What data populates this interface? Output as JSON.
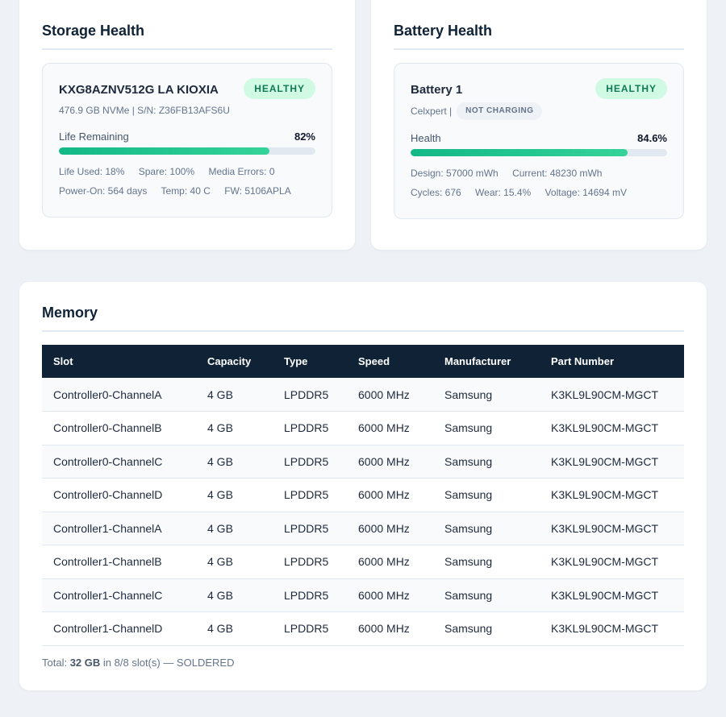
{
  "storage": {
    "title": "Storage Health",
    "device_name": "KXG8AZNV512G LA KIOXIA",
    "status": "HEALTHY",
    "subtitle": "476.9 GB NVMe | S/N: Z36FB13AFS6U",
    "life_label": "Life Remaining",
    "life_value": "82%",
    "life_fraction": 0.82,
    "life_used": "Life Used: 18%",
    "spare": "Spare: 100%",
    "media_errors": "Media Errors: 0",
    "power_on": "Power-On: 564 days",
    "temp": "Temp: 40 C",
    "firmware": "FW: 5106APLA"
  },
  "battery": {
    "title": "Battery Health",
    "name": "Battery 1",
    "status": "HEALTHY",
    "vendor": "Celxpert |",
    "charge_state": "NOT CHARGING",
    "health_label": "Health",
    "health_value": "84.6%",
    "health_fraction": 0.846,
    "design": "Design: 57000 mWh",
    "current": "Current: 48230 mWh",
    "cycles": "Cycles: 676",
    "wear": "Wear: 15.4%",
    "voltage": "Voltage: 14694 mV"
  },
  "memory": {
    "title": "Memory",
    "columns": [
      "Slot",
      "Capacity",
      "Type",
      "Speed",
      "Manufacturer",
      "Part Number"
    ],
    "rows": [
      [
        "Controller0-ChannelA",
        "4 GB",
        "LPDDR5",
        "6000 MHz",
        "Samsung",
        "K3KL9L90CM-MGCT"
      ],
      [
        "Controller0-ChannelB",
        "4 GB",
        "LPDDR5",
        "6000 MHz",
        "Samsung",
        "K3KL9L90CM-MGCT"
      ],
      [
        "Controller0-ChannelC",
        "4 GB",
        "LPDDR5",
        "6000 MHz",
        "Samsung",
        "K3KL9L90CM-MGCT"
      ],
      [
        "Controller0-ChannelD",
        "4 GB",
        "LPDDR5",
        "6000 MHz",
        "Samsung",
        "K3KL9L90CM-MGCT"
      ],
      [
        "Controller1-ChannelA",
        "4 GB",
        "LPDDR5",
        "6000 MHz",
        "Samsung",
        "K3KL9L90CM-MGCT"
      ],
      [
        "Controller1-ChannelB",
        "4 GB",
        "LPDDR5",
        "6000 MHz",
        "Samsung",
        "K3KL9L90CM-MGCT"
      ],
      [
        "Controller1-ChannelC",
        "4 GB",
        "LPDDR5",
        "6000 MHz",
        "Samsung",
        "K3KL9L90CM-MGCT"
      ],
      [
        "Controller1-ChannelD",
        "4 GB",
        "LPDDR5",
        "6000 MHz",
        "Samsung",
        "K3KL9L90CM-MGCT"
      ]
    ],
    "total_prefix": "Total:",
    "total_value": "32 GB",
    "total_suffix": "in 8/8 slot(s) — SOLDERED"
  },
  "colors": {
    "background": "#eef2f6",
    "navy": "#0f2236",
    "healthy_bg": "#d1fae5",
    "healthy_text": "#0f7a55",
    "progress": "#12b886"
  }
}
